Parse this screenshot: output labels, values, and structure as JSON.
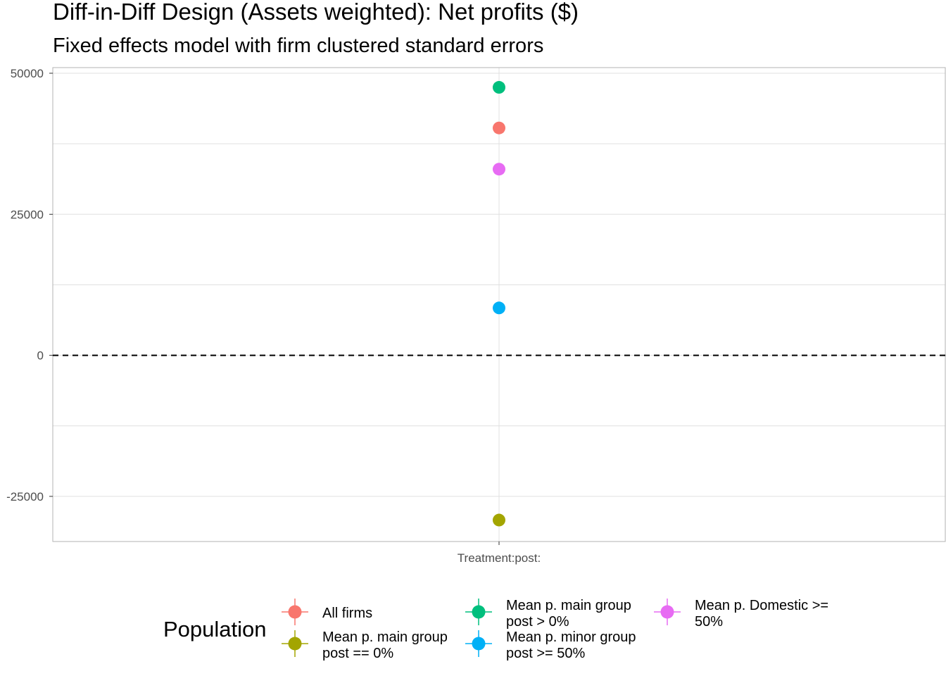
{
  "chart_data": {
    "type": "scatter",
    "title": "Diff-in-Diff Design (Assets weighted): Net profits  ($)",
    "subtitle": "Fixed effects model with firm clustered standard errors",
    "xlabel": "",
    "ylabel": "",
    "categories": [
      "Treatment:post:"
    ],
    "ylim": [
      -33000,
      51000
    ],
    "yticks": [
      -25000,
      0,
      25000,
      50000
    ],
    "yticks_labels": [
      "-25000",
      "0",
      "25000",
      "50000"
    ],
    "reference_line": {
      "y": 0,
      "style": "dashed"
    },
    "grid": true,
    "legend_position": "bottom",
    "legend_title": "Population",
    "series": [
      {
        "name": "All firms",
        "legend_lines": [
          "All firms"
        ],
        "color": "#F8766D",
        "category": "Treatment:post:",
        "value": 40300
      },
      {
        "name": "Mean p. main group post == 0%",
        "legend_lines": [
          "Mean p. main group",
          "post == 0%"
        ],
        "color": "#A3A500",
        "category": "Treatment:post:",
        "value": -29200
      },
      {
        "name": "Mean p. main group post > 0%",
        "legend_lines": [
          "Mean p. main group",
          "post > 0%"
        ],
        "color": "#00BF7D",
        "category": "Treatment:post:",
        "value": 47500
      },
      {
        "name": "Mean p. minor group post >= 50%",
        "legend_lines": [
          "Mean p. minor group",
          "post >= 50%"
        ],
        "color": "#00B0F6",
        "category": "Treatment:post:",
        "value": 8400
      },
      {
        "name": "Mean p. Domestic >= 50%",
        "legend_lines": [
          "Mean p. Domestic >=",
          "50%"
        ],
        "color": "#E76BF3",
        "category": "Treatment:post:",
        "value": 33000
      }
    ]
  }
}
